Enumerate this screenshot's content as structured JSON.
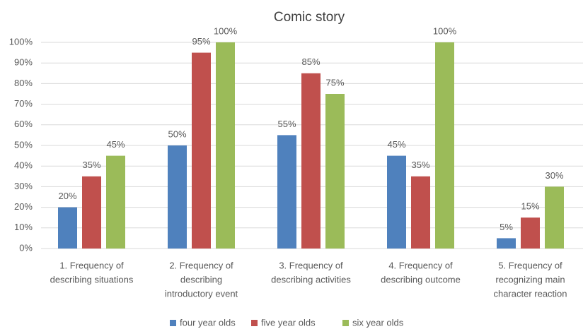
{
  "chart_data": {
    "type": "bar",
    "title": "Comic story",
    "categories": [
      [
        "1. Frequency of",
        "describing situations"
      ],
      [
        "2. Frequency of",
        "describing",
        "introductory event"
      ],
      [
        "3. Frequency of",
        "describing activities"
      ],
      [
        "4. Frequency of",
        "describing outcome"
      ],
      [
        "5. Frequency of",
        "recognizing main",
        "character reaction"
      ]
    ],
    "series": [
      {
        "name": "four year olds",
        "color": "#4f81bd",
        "values": [
          20,
          50,
          55,
          45,
          5
        ],
        "value_labels": [
          "20%",
          "50%",
          "55%",
          "45%",
          "5%"
        ]
      },
      {
        "name": "five year olds",
        "color": "#c0504d",
        "values": [
          35,
          95,
          85,
          35,
          15
        ],
        "value_labels": [
          "35%",
          "95%",
          "85%",
          "35%",
          "15%"
        ]
      },
      {
        "name": "six year olds",
        "color": "#9bbb59",
        "values": [
          45,
          100,
          75,
          100,
          30
        ],
        "value_labels": [
          "45%",
          "100%",
          "75%",
          "100%",
          "30%"
        ]
      }
    ],
    "ylim": [
      0,
      100
    ],
    "yticks": [
      {
        "value": 0,
        "label": "0%"
      },
      {
        "value": 10,
        "label": "10%"
      },
      {
        "value": 20,
        "label": "20%"
      },
      {
        "value": 30,
        "label": "30%"
      },
      {
        "value": 40,
        "label": "40%"
      },
      {
        "value": 50,
        "label": "50%"
      },
      {
        "value": 60,
        "label": "60%"
      },
      {
        "value": 70,
        "label": "70%"
      },
      {
        "value": 80,
        "label": "80%"
      },
      {
        "value": 90,
        "label": "90%"
      },
      {
        "value": 100,
        "label": "100%"
      }
    ],
    "grid": true,
    "legend": "bottom"
  }
}
